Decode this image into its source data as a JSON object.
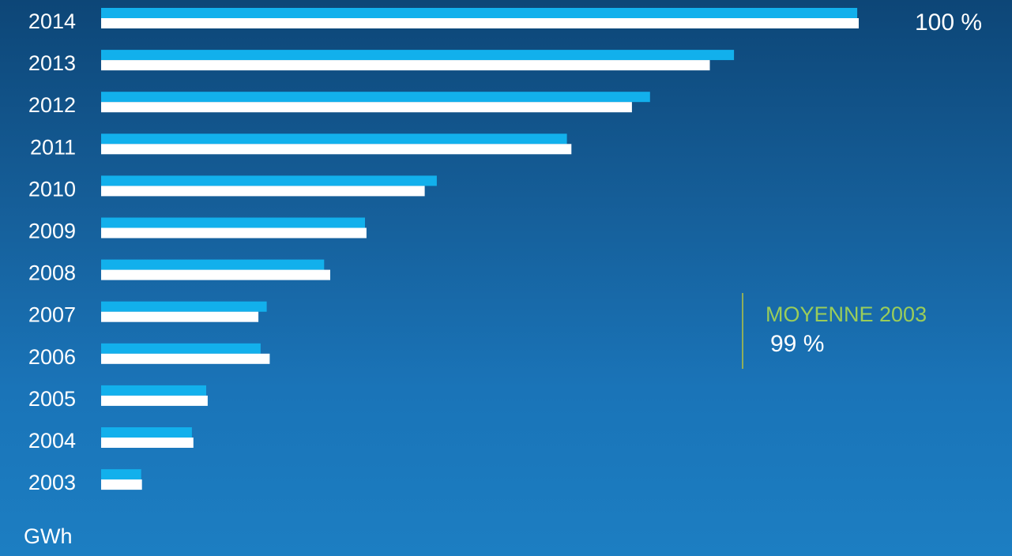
{
  "chart_data": {
    "type": "bar",
    "orientation": "horizontal",
    "categories": [
      "2014",
      "2013",
      "2012",
      "2011",
      "2010",
      "2009",
      "2008",
      "2007",
      "2006",
      "2005",
      "2004",
      "2003"
    ],
    "series": [
      {
        "values": [
          100,
          83.7,
          72.6,
          61.6,
          44.4,
          34.9,
          29.5,
          21.9,
          21.1,
          13.9,
          12.0,
          5.3
        ]
      },
      {
        "values": [
          100.2,
          80.5,
          70.2,
          62.2,
          42.8,
          35.1,
          30.3,
          20.8,
          22.3,
          14.1,
          12.2,
          5.4
        ]
      }
    ],
    "series_colors": [
      "#12b0ec",
      "#ffffff"
    ],
    "xlim": [
      0,
      100.2
    ],
    "unit": "GWh",
    "top_annotation": "100 %",
    "average": {
      "label": "MOYENNE 2003",
      "value": "99 %",
      "label_color": "#9acd5a"
    },
    "grid": false,
    "legend": "none"
  }
}
